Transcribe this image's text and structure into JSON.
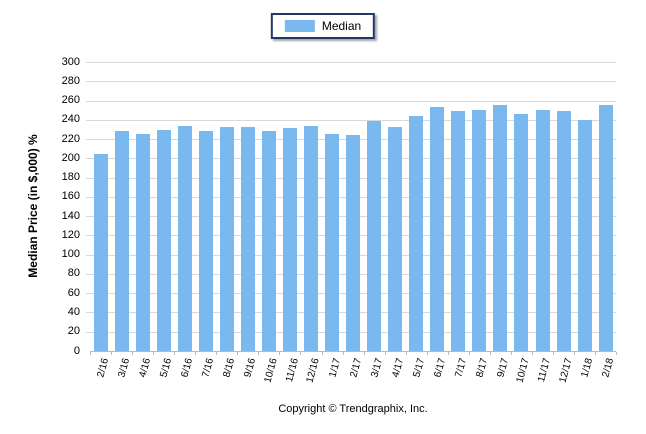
{
  "legend": {
    "label": "Median"
  },
  "footer": {
    "copyright": "Copyright © Trendgraphix, Inc."
  },
  "colors": {
    "bar": "#79b9f0",
    "grid": "#d9d9d9",
    "axis": "#b9b9b9",
    "legend_border": "#1f3864",
    "text": "#000000"
  },
  "chart_data": {
    "type": "bar",
    "title": "",
    "xlabel": "",
    "ylabel": "Median Price (in $,000) %",
    "ylim": [
      0,
      300
    ],
    "y_tick_step": 20,
    "grid": "horizontal",
    "legend_position": "top-center",
    "categories": [
      "2/16",
      "3/16",
      "4/16",
      "5/16",
      "6/16",
      "7/16",
      "8/16",
      "9/16",
      "10/16",
      "11/16",
      "12/16",
      "1/17",
      "2/17",
      "3/17",
      "4/17",
      "5/17",
      "6/17",
      "7/17",
      "8/17",
      "9/17",
      "10/17",
      "11/17",
      "12/17",
      "1/18",
      "2/18"
    ],
    "series": [
      {
        "name": "Median",
        "color": "#79b9f0",
        "values": [
          205,
          228,
          225,
          229,
          234,
          228,
          233,
          233,
          228,
          231,
          234,
          225,
          224,
          239,
          233,
          244,
          253,
          249,
          250,
          255,
          246,
          250,
          249,
          240,
          255
        ]
      }
    ]
  }
}
